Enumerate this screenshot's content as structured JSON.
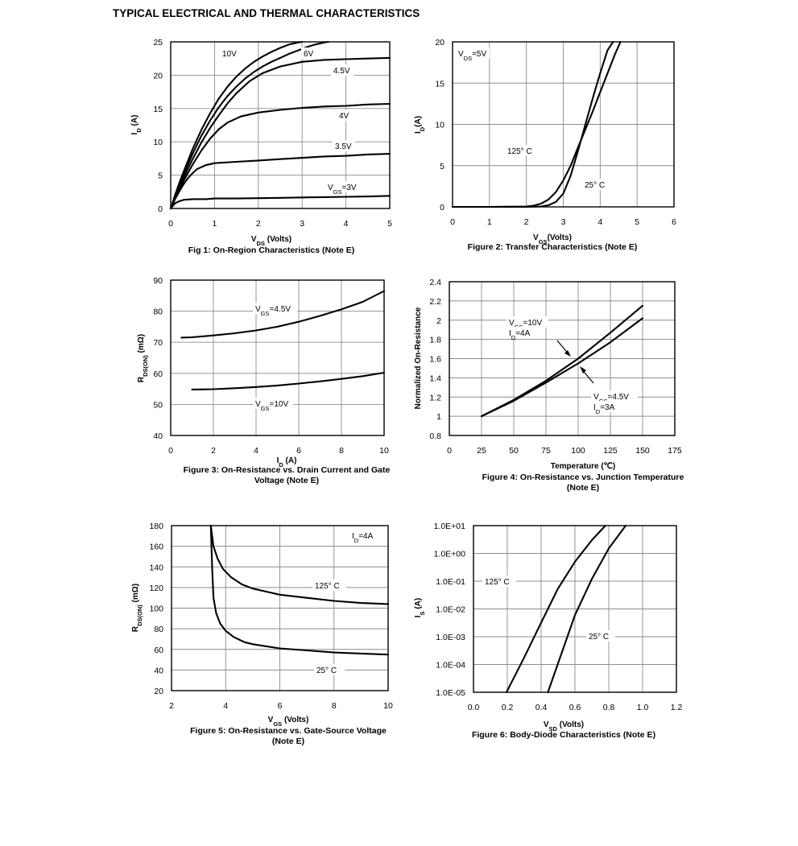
{
  "page_title": "TYPICAL ELECTRICAL AND THERMAL CHARACTERISTICS",
  "chart_data": [
    {
      "id": "fig1",
      "type": "line",
      "caption": "Fig 1: On-Region Characteristics (Note E)",
      "xlabel": {
        "main": "V",
        "sub": "DS",
        "rest": " (Volts)"
      },
      "ylabel": {
        "main": "I",
        "sub": "D",
        "rest": " (A)"
      },
      "xlim": [
        0,
        5
      ],
      "ylim": [
        0,
        25
      ],
      "xticks": [
        0,
        1,
        2,
        3,
        4,
        5
      ],
      "yticks": [
        0,
        5,
        10,
        15,
        20,
        25
      ],
      "grid": true,
      "series": [
        {
          "name": "10V",
          "x": [
            0,
            0.1,
            0.2,
            0.3,
            0.5,
            0.7,
            0.9,
            1.1,
            1.3,
            1.5,
            1.7,
            1.9,
            2.1,
            2.3,
            2.5,
            2.7,
            2.9,
            3.0
          ],
          "y": [
            0,
            2.0,
            3.9,
            5.6,
            8.9,
            11.8,
            14.3,
            16.5,
            18.3,
            19.8,
            21.0,
            22.0,
            22.8,
            23.5,
            24.1,
            24.6,
            24.9,
            25
          ]
        },
        {
          "name": "6V",
          "x": [
            0,
            0.1,
            0.2,
            0.3,
            0.5,
            0.7,
            0.9,
            1.1,
            1.3,
            1.5,
            1.7,
            1.9,
            2.1,
            2.3,
            2.5,
            2.7,
            2.9,
            3.1,
            3.3,
            3.5,
            3.6
          ],
          "y": [
            0,
            1.8,
            3.6,
            5.2,
            8.2,
            10.9,
            13.2,
            15.2,
            16.9,
            18.3,
            19.5,
            20.5,
            21.3,
            22.0,
            22.6,
            23.2,
            23.7,
            24.2,
            24.6,
            24.9,
            25
          ]
        },
        {
          "name": "4.5V",
          "x": [
            0,
            0.1,
            0.2,
            0.3,
            0.5,
            0.7,
            0.9,
            1.1,
            1.3,
            1.5,
            1.8,
            2.1,
            2.5,
            3.0,
            3.5,
            4.0,
            4.5,
            5.0
          ],
          "y": [
            0,
            1.6,
            3.2,
            4.7,
            7.4,
            9.9,
            12.1,
            14.0,
            15.8,
            17.3,
            19.1,
            20.3,
            21.3,
            22.0,
            22.3,
            22.4,
            22.5,
            22.6
          ]
        },
        {
          "name": "4V",
          "x": [
            0,
            0.1,
            0.2,
            0.3,
            0.5,
            0.7,
            0.9,
            1.1,
            1.3,
            1.6,
            2.0,
            2.5,
            3.0,
            3.5,
            4.0,
            4.5,
            5.0
          ],
          "y": [
            0,
            1.5,
            2.9,
            4.2,
            6.6,
            8.7,
            10.5,
            11.9,
            12.9,
            13.8,
            14.4,
            14.8,
            15.1,
            15.3,
            15.4,
            15.6,
            15.7
          ]
        },
        {
          "name": "3.5V",
          "x": [
            0,
            0.1,
            0.2,
            0.3,
            0.4,
            0.5,
            0.6,
            0.8,
            1.0,
            1.5,
            2.0,
            2.5,
            3.0,
            3.5,
            4.0,
            4.5,
            5.0
          ],
          "y": [
            0,
            1.4,
            2.6,
            3.7,
            4.6,
            5.3,
            5.9,
            6.5,
            6.8,
            7.0,
            7.2,
            7.4,
            7.6,
            7.8,
            7.9,
            8.1,
            8.2
          ]
        },
        {
          "name": "3V",
          "x": [
            0,
            0.1,
            0.2,
            0.3,
            0.5,
            0.8,
            1.0,
            1.5,
            2.0,
            2.5,
            3.0,
            3.5,
            4.0,
            4.5,
            5.0
          ],
          "y": [
            0,
            0.8,
            1.1,
            1.3,
            1.4,
            1.4,
            1.5,
            1.5,
            1.55,
            1.6,
            1.65,
            1.7,
            1.75,
            1.8,
            1.9
          ]
        }
      ],
      "labels": [
        "10V",
        "6V",
        "4.5V",
        "4V",
        "3.5V",
        "V",
        "GS",
        "=3V"
      ]
    },
    {
      "id": "fig2",
      "type": "line",
      "caption": "Figure 2: Transfer Characteristics (Note E)",
      "xlabel": {
        "main": "V",
        "sub": "GS",
        "rest": "(Volts)"
      },
      "ylabel": {
        "main": "I",
        "sub": "D",
        "rest": "(A)"
      },
      "xlim": [
        0,
        6
      ],
      "ylim": [
        0,
        20
      ],
      "xticks": [
        0,
        1,
        2,
        3,
        4,
        5,
        6
      ],
      "yticks": [
        0,
        5,
        10,
        15,
        20
      ],
      "grid": true,
      "series": [
        {
          "name": "125° C",
          "x": [
            0,
            1.0,
            2.0,
            2.2,
            2.4,
            2.6,
            2.8,
            3.0,
            3.2,
            3.4,
            3.6,
            3.8,
            4.0,
            4.2,
            4.4,
            4.55
          ],
          "y": [
            0,
            0,
            0.05,
            0.15,
            0.4,
            0.9,
            1.8,
            3.2,
            5.0,
            7.2,
            9.4,
            11.6,
            13.9,
            16.2,
            18.5,
            20
          ]
        },
        {
          "name": "25° C",
          "x": [
            0,
            1.0,
            2.0,
            2.4,
            2.6,
            2.8,
            3.0,
            3.2,
            3.4,
            3.6,
            3.8,
            4.0,
            4.2,
            4.35
          ],
          "y": [
            0,
            0,
            0,
            0.05,
            0.2,
            0.6,
            1.6,
            3.8,
            6.8,
            10.0,
            13.2,
            16.2,
            19.0,
            20
          ]
        }
      ],
      "labels": [
        "V",
        "DS",
        "=5V",
        "125° C",
        "25° C"
      ]
    },
    {
      "id": "fig3",
      "type": "line",
      "caption": [
        "Figure 3: On-Resistance vs. Drain Current and Gate",
        "Voltage (Note E)"
      ],
      "xlabel": {
        "main": "I",
        "sub": "D",
        "rest": " (A)"
      },
      "ylabel": {
        "main": "R",
        "sub": "DS(ON)",
        "rest": " (mΩ)"
      },
      "xlim": [
        0,
        10
      ],
      "ylim": [
        40,
        90
      ],
      "xticks": [
        0,
        2,
        4,
        6,
        8,
        10
      ],
      "yticks": [
        40,
        50,
        60,
        70,
        80,
        90
      ],
      "grid": true,
      "series": [
        {
          "name": "V_GS=4.5V",
          "x": [
            0.5,
            1,
            2,
            3,
            4,
            5,
            6,
            7,
            8,
            9,
            10
          ],
          "y": [
            71.5,
            71.6,
            72.2,
            72.9,
            73.8,
            75.0,
            76.6,
            78.5,
            80.6,
            83.0,
            86.5
          ]
        },
        {
          "name": "V_GS=10V",
          "x": [
            1,
            2,
            3,
            4,
            5,
            6,
            7,
            8,
            9,
            10
          ],
          "y": [
            54.8,
            54.9,
            55.2,
            55.6,
            56.1,
            56.7,
            57.4,
            58.2,
            59.1,
            60.2
          ]
        }
      ],
      "labels": [
        "V",
        "GS",
        "=4.5V",
        "V",
        "GS",
        "=10V"
      ]
    },
    {
      "id": "fig4",
      "type": "line",
      "caption": [
        "Figure 4: On-Resistance vs. Junction Temperature",
        "(Note E)"
      ],
      "xlabel": "Temperature (℃)",
      "ylabel": "Normalized On-Resistance",
      "xlim": [
        0,
        175
      ],
      "ylim": [
        0.8,
        2.4
      ],
      "xticks": [
        0,
        25,
        50,
        75,
        100,
        125,
        150,
        175
      ],
      "yticks": [
        0.8,
        1,
        1.2,
        1.4,
        1.6,
        1.8,
        2,
        2.2,
        2.4
      ],
      "grid": true,
      "series": [
        {
          "name": "V_GS=10V, I_D=4A",
          "x": [
            25,
            50,
            75,
            100,
            125,
            150
          ],
          "y": [
            1.0,
            1.17,
            1.37,
            1.6,
            1.87,
            2.15
          ]
        },
        {
          "name": "V_GS=4.5V, I_D=3A",
          "x": [
            25,
            50,
            75,
            100,
            125,
            150
          ],
          "y": [
            1.0,
            1.16,
            1.35,
            1.55,
            1.77,
            2.02
          ]
        }
      ],
      "labels": [
        "V",
        "GS",
        "=10V",
        "I",
        "D",
        "=4A",
        "V",
        "GS",
        "=4.5V",
        "I",
        "D",
        "=3A"
      ]
    },
    {
      "id": "fig5",
      "type": "line",
      "caption": [
        "Figure 5: On-Resistance vs. Gate-Source Voltage",
        "(Note E)"
      ],
      "xlabel": {
        "main": "V",
        "sub": "GS",
        "rest": " (Volts)"
      },
      "ylabel": {
        "main": "R",
        "sub": "DS(ON)",
        "rest": " (mΩ)"
      },
      "xlim": [
        2,
        10
      ],
      "ylim": [
        20,
        180
      ],
      "xticks": [
        2,
        4,
        6,
        8,
        10
      ],
      "yticks": [
        20,
        40,
        60,
        80,
        100,
        120,
        140,
        160,
        180
      ],
      "grid": true,
      "series": [
        {
          "name": "125° C",
          "x": [
            3.45,
            3.55,
            3.7,
            3.9,
            4.2,
            4.6,
            5.0,
            5.5,
            6,
            7,
            8,
            9,
            10
          ],
          "y": [
            180,
            160,
            148,
            138,
            130,
            123,
            119,
            116,
            113,
            110,
            107,
            105,
            104
          ]
        },
        {
          "name": "25° C",
          "x": [
            3.45,
            3.5,
            3.55,
            3.65,
            3.8,
            4.0,
            4.3,
            4.7,
            5.0,
            5.5,
            6,
            7,
            8,
            9,
            10
          ],
          "y": [
            180,
            140,
            110,
            95,
            85,
            78,
            72,
            67,
            65,
            63,
            61,
            59,
            57,
            56,
            55
          ]
        }
      ],
      "labels": [
        "I",
        "D",
        "=4A",
        "125° C",
        "25° C"
      ]
    },
    {
      "id": "fig6",
      "type": "line",
      "scale": "log-y",
      "caption": "Figure 6: Body-Diode Characteristics (Note E)",
      "xlabel": {
        "main": "V",
        "sub": "SD",
        "rest": " (Volts)"
      },
      "ylabel": {
        "main": "I",
        "sub": "S",
        "rest": " (A)"
      },
      "xlim": [
        0.0,
        1.2
      ],
      "ylim": [
        1e-05,
        10
      ],
      "xticks": [
        "0.0",
        "0.2",
        "0.4",
        "0.6",
        "0.8",
        "1.0",
        "1.2"
      ],
      "yticks": [
        "1.0E-05",
        "1.0E-04",
        "1.0E-03",
        "1.0E-02",
        "1.0E-01",
        "1.0E+00",
        "1.0E+01"
      ],
      "grid": true,
      "series": [
        {
          "name": "125° C",
          "x": [
            0.195,
            0.3,
            0.4,
            0.5,
            0.6,
            0.7,
            0.78
          ],
          "y": [
            1e-05,
            0.00018,
            0.0032,
            0.055,
            0.5,
            3.0,
            10
          ]
        },
        {
          "name": "25° C",
          "x": [
            0.44,
            0.5,
            0.6,
            0.7,
            0.8,
            0.9
          ],
          "y": [
            1e-05,
            0.00011,
            0.006,
            0.12,
            1.5,
            10
          ]
        }
      ],
      "labels": [
        "125° C",
        "25° C"
      ]
    }
  ]
}
